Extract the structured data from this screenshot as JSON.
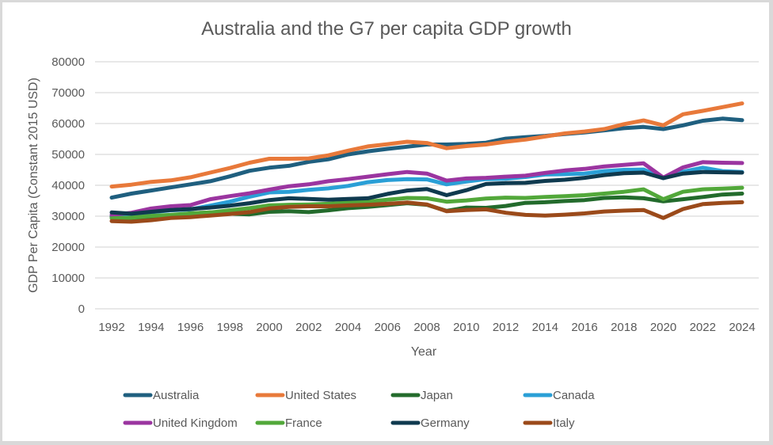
{
  "chart_data": {
    "type": "line",
    "title": "Australia and the G7 per capita GDP growth",
    "xlabel": "Year",
    "ylabel": "GDP Per Capita (Constant 2015 USD)",
    "ylim": [
      0,
      80000
    ],
    "yticks": [
      0,
      10000,
      20000,
      30000,
      40000,
      50000,
      60000,
      70000,
      80000
    ],
    "ytick_labels": [
      "0",
      "10000",
      "20000",
      "30000",
      "40000",
      "50000",
      "60000",
      "70000",
      "80000"
    ],
    "xticks": [
      1992,
      1994,
      1996,
      1998,
      2000,
      2002,
      2004,
      2006,
      2008,
      2010,
      2012,
      2014,
      2016,
      2018,
      2020,
      2022,
      2024
    ],
    "xtick_labels": [
      "1992",
      "1994",
      "1996",
      "1998",
      "2000",
      "2002",
      "2004",
      "2006",
      "2008",
      "2010",
      "2012",
      "2014",
      "2016",
      "2018",
      "2020",
      "2022",
      "2024"
    ],
    "grid": true,
    "legend_position": "bottom",
    "x": [
      1992,
      1993,
      1994,
      1995,
      1996,
      1997,
      1998,
      1999,
      2000,
      2001,
      2002,
      2003,
      2004,
      2005,
      2006,
      2007,
      2008,
      2009,
      2010,
      2011,
      2012,
      2013,
      2014,
      2015,
      2016,
      2017,
      2018,
      2019,
      2020,
      2021,
      2022,
      2023,
      2024
    ],
    "series": [
      {
        "name": "Australia",
        "color": "#1f5f7f",
        "values": [
          36000,
          37300,
          38300,
          39300,
          40300,
          41300,
          42900,
          44700,
          45700,
          46300,
          47600,
          48400,
          50000,
          51000,
          51800,
          52500,
          53200,
          53200,
          53400,
          53800,
          55100,
          55600,
          56000,
          56600,
          57100,
          57800,
          58500,
          58900,
          58200,
          59400,
          60900,
          61600,
          61100
        ]
      },
      {
        "name": "United States",
        "color": "#e8793a",
        "values": [
          39600,
          40200,
          41100,
          41600,
          42600,
          44100,
          45600,
          47300,
          48600,
          48600,
          48700,
          49700,
          51200,
          52600,
          53300,
          54100,
          53700,
          52000,
          52700,
          53200,
          54100,
          54800,
          55800,
          56800,
          57400,
          58200,
          59800,
          61000,
          59400,
          63000,
          64100,
          65300,
          66500
        ]
      },
      {
        "name": "Japan",
        "color": "#236b2c",
        "values": [
          29800,
          29300,
          29500,
          30100,
          30900,
          31200,
          30800,
          30600,
          31400,
          31600,
          31300,
          31900,
          32600,
          33000,
          33600,
          34200,
          33700,
          31700,
          32800,
          32700,
          33300,
          34300,
          34500,
          34900,
          35200,
          35900,
          36100,
          35800,
          34800,
          35500,
          36200,
          37000,
          37300
        ]
      },
      {
        "name": "Canada",
        "color": "#2a9fd6",
        "values": [
          30300,
          30500,
          31300,
          31900,
          32200,
          33400,
          34700,
          36300,
          37700,
          37900,
          38500,
          39000,
          39800,
          41000,
          41700,
          42000,
          41900,
          40300,
          41200,
          42000,
          42100,
          42700,
          43500,
          43600,
          43800,
          44600,
          45000,
          45100,
          42300,
          44400,
          45700,
          44600,
          44300
        ]
      },
      {
        "name": "United Kingdom",
        "color": "#9b35a0",
        "values": [
          30400,
          31100,
          32500,
          33200,
          33600,
          35500,
          36500,
          37400,
          38600,
          39700,
          40300,
          41300,
          42000,
          42800,
          43600,
          44300,
          43800,
          41500,
          42200,
          42400,
          42800,
          43100,
          44000,
          44800,
          45300,
          46100,
          46600,
          47100,
          42500,
          45800,
          47500,
          47300,
          47200
        ]
      },
      {
        "name": "France",
        "color": "#52a83a",
        "values": [
          29300,
          29500,
          30100,
          30400,
          30900,
          31200,
          31900,
          32600,
          33500,
          33700,
          33800,
          34000,
          34400,
          34700,
          35300,
          35900,
          35800,
          34700,
          35100,
          35700,
          36000,
          35900,
          36200,
          36500,
          36800,
          37300,
          37900,
          38700,
          35500,
          37900,
          38700,
          38900,
          39200
        ]
      },
      {
        "name": "Germany",
        "color": "#0f3a4f",
        "values": [
          31200,
          30800,
          31400,
          32000,
          32300,
          32800,
          33400,
          34200,
          35200,
          35800,
          35600,
          35300,
          35600,
          35800,
          37200,
          38300,
          38800,
          36800,
          38400,
          40400,
          40700,
          40800,
          41400,
          41800,
          42400,
          43300,
          43900,
          44100,
          42300,
          43800,
          44300,
          44200,
          44100
        ]
      },
      {
        "name": "Italy",
        "color": "#9b4a1a",
        "values": [
          28400,
          28200,
          28700,
          29400,
          29700,
          30200,
          30700,
          31300,
          32500,
          33000,
          33200,
          33200,
          33500,
          33700,
          34000,
          34400,
          33800,
          31600,
          32000,
          32200,
          31100,
          30400,
          30200,
          30500,
          30900,
          31500,
          31800,
          32000,
          29400,
          32300,
          33900,
          34300,
          34500
        ]
      }
    ]
  }
}
